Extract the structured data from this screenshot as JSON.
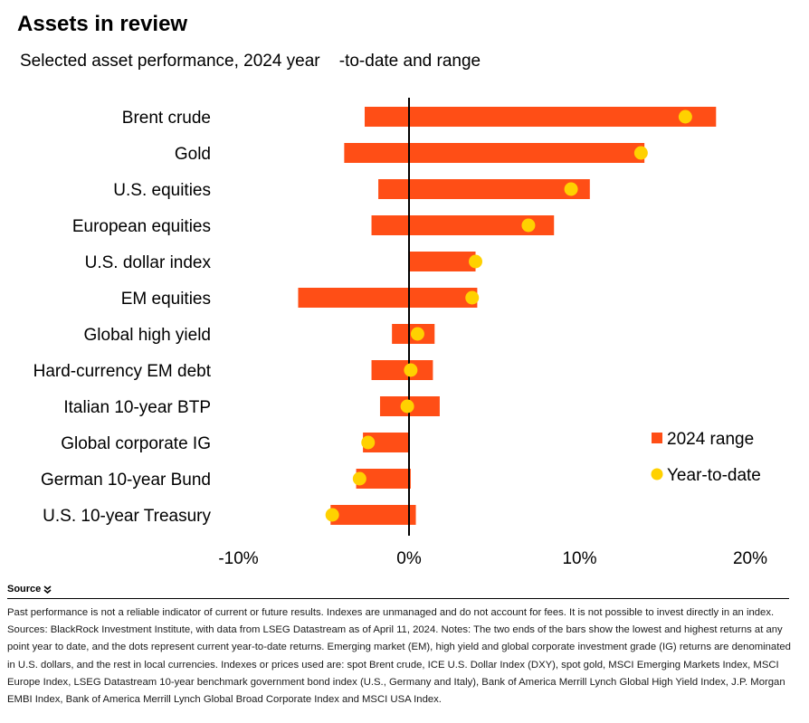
{
  "header": {
    "title": "Assets in review",
    "subtitle": "Selected asset performance, 2024 year    -to-date and range"
  },
  "colors": {
    "range_bar": "#ff4e16",
    "ytd_dot": "#ffd100",
    "zero_line": "#000000"
  },
  "chart_data": {
    "type": "bar",
    "title": "Assets in review",
    "subtitle": "Selected asset performance, 2024 year    -to-date and range",
    "orientation": "horizontal",
    "xlim": [
      -10,
      20
    ],
    "ticks": [
      {
        "value": -10,
        "label": "-10%"
      },
      {
        "value": 0,
        "label": "0%"
      },
      {
        "value": 10,
        "label": "10%"
      },
      {
        "value": 20,
        "label": "20%"
      }
    ],
    "grid": false,
    "legend_position": "right",
    "legend": [
      {
        "label": "2024 range",
        "marker": "square",
        "color": "#ff4e16"
      },
      {
        "label": "Year-to-date",
        "marker": "circle",
        "color": "#ffd100"
      }
    ],
    "categories": [
      "Brent crude",
      "Gold",
      "U.S. equities",
      "European equities",
      "U.S. dollar index",
      "EM equities",
      "Global high yield",
      "Hard-currency EM debt",
      "Italian 10-year BTP",
      "Global corporate IG",
      "German 10-year Bund",
      "U.S. 10-year Treasury"
    ],
    "series": [
      {
        "name": "2024 range",
        "type": "range",
        "low": [
          -2.6,
          -3.8,
          -1.8,
          -2.2,
          0.0,
          -6.5,
          -1.0,
          -2.2,
          -1.7,
          -2.7,
          -3.1,
          -4.6
        ],
        "high": [
          18.0,
          13.8,
          10.6,
          8.5,
          3.9,
          4.0,
          1.5,
          1.4,
          1.8,
          0.0,
          0.1,
          0.4
        ]
      },
      {
        "name": "Year-to-date",
        "type": "point",
        "values": [
          16.2,
          13.6,
          9.5,
          7.0,
          3.9,
          3.7,
          0.5,
          0.1,
          -0.1,
          -2.4,
          -2.9,
          -4.5
        ]
      }
    ]
  },
  "source": {
    "label": "Source",
    "text": "Past performance is not a reliable indicator of current or future results. Indexes are unmanaged and do not account for fees. It is not possible to invest directly in an index. Sources: BlackRock Investment Institute, with data from LSEG Datastream as of April 11, 2024. Notes: The two ends of the bars show the lowest and highest returns at any point year to date, and the dots represent current year-to-date returns. Emerging market (EM), high yield and global corporate investment grade (IG) returns are denominated in U.S. dollars, and the rest in local currencies. Indexes or prices used are: spot Brent crude, ICE U.S. Dollar Index (DXY), spot gold, MSCI Emerging Markets Index, MSCI Europe Index, LSEG Datastream 10-year benchmark government bond index (U.S., Germany and Italy), Bank of America Merrill Lynch Global High Yield Index, J.P. Morgan EMBI Index, Bank of America Merrill Lynch Global Broad Corporate Index and MSCI USA Index."
  }
}
